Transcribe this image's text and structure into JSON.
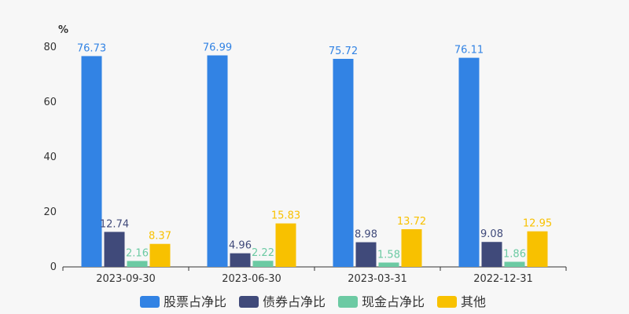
{
  "chart_data": {
    "type": "bar",
    "unit": "%",
    "categories": [
      "2023-09-30",
      "2023-06-30",
      "2023-03-31",
      "2022-12-31"
    ],
    "series": [
      {
        "name": "股票占净比",
        "color": "#3283e4",
        "values": [
          76.73,
          76.99,
          75.72,
          76.11
        ]
      },
      {
        "name": "债券占净比",
        "color": "#404a7a",
        "values": [
          12.74,
          4.96,
          8.98,
          9.08
        ]
      },
      {
        "name": "现金占净比",
        "color": "#6ccaa3",
        "values": [
          2.16,
          2.22,
          1.58,
          1.86
        ]
      },
      {
        "name": "其他",
        "color": "#f8c100",
        "values": [
          8.37,
          15.83,
          13.72,
          12.95
        ]
      }
    ],
    "ylim": [
      0,
      80
    ],
    "yticks": [
      0,
      20,
      40,
      60,
      80
    ],
    "grid": false,
    "legend_position": "bottom"
  }
}
